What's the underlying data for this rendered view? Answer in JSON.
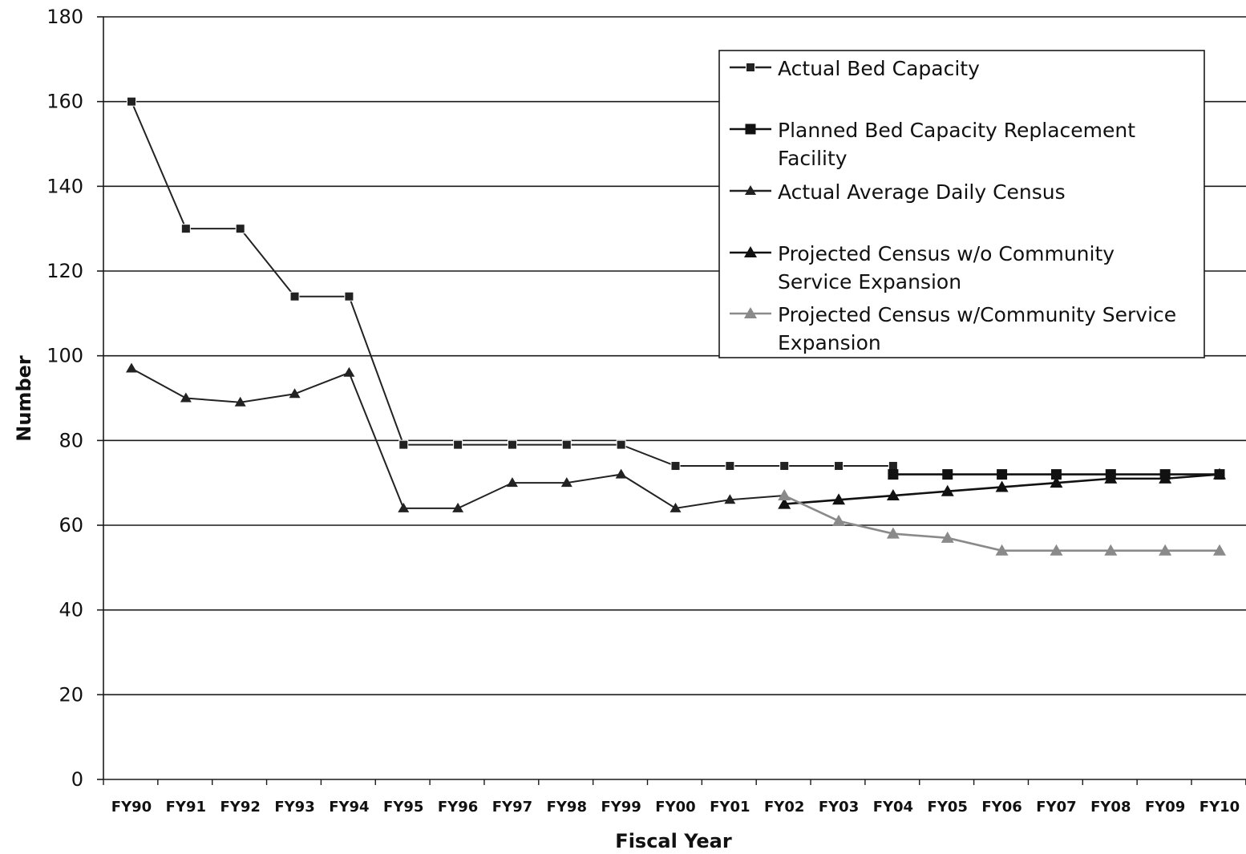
{
  "chart_data": {
    "type": "line",
    "title": "",
    "xlabel": "Fiscal Year",
    "ylabel": "Number",
    "ylim": [
      0,
      180
    ],
    "yticks": [
      0,
      20,
      40,
      60,
      80,
      100,
      120,
      140,
      160,
      180
    ],
    "grid": "horizontal",
    "legend_position": "top-right",
    "categories": [
      "FY90",
      "FY91",
      "FY92",
      "FY93",
      "FY94",
      "FY95",
      "FY96",
      "FY97",
      "FY98",
      "FY99",
      "FY00",
      "FY01",
      "FY02",
      "FY03",
      "FY04",
      "FY05",
      "FY06",
      "FY07",
      "FY08",
      "FY09",
      "FY10"
    ],
    "series": [
      {
        "name": "Actual Bed Capacity",
        "marker": "square-small",
        "color": "#222222",
        "values": [
          160,
          130,
          130,
          114,
          114,
          79,
          79,
          79,
          79,
          79,
          74,
          74,
          74,
          74,
          74,
          null,
          null,
          null,
          null,
          null,
          null
        ]
      },
      {
        "name": "Planned Bed Capacity Replacement Facility",
        "marker": "square",
        "color": "#111111",
        "values": [
          null,
          null,
          null,
          null,
          null,
          null,
          null,
          null,
          null,
          null,
          null,
          null,
          null,
          null,
          72,
          72,
          72,
          72,
          72,
          72,
          72
        ]
      },
      {
        "name": "Actual Average Daily Census",
        "marker": "triangle-small",
        "color": "#222222",
        "values": [
          97,
          90,
          89,
          91,
          96,
          64,
          64,
          70,
          70,
          72,
          64,
          66,
          67,
          null,
          null,
          null,
          null,
          null,
          null,
          null,
          null
        ]
      },
      {
        "name": "Projected Census w/o Community Service Expansion",
        "marker": "triangle",
        "color": "#111111",
        "values": [
          null,
          null,
          null,
          null,
          null,
          null,
          null,
          null,
          null,
          null,
          null,
          null,
          65,
          66,
          67,
          68,
          69,
          70,
          71,
          71,
          72
        ]
      },
      {
        "name": "Projected Census w/Community Service Expansion",
        "marker": "triangle",
        "color": "#8a8a8a",
        "values": [
          null,
          null,
          null,
          null,
          null,
          null,
          null,
          null,
          null,
          null,
          null,
          null,
          67,
          61,
          58,
          57,
          54,
          54,
          54,
          54,
          54
        ]
      }
    ],
    "legend": [
      {
        "lines": [
          "Actual Bed Capacity"
        ]
      },
      {
        "lines": [
          "Planned Bed Capacity Replacement",
          "Facility"
        ]
      },
      {
        "lines": [
          "Actual Average Daily Census"
        ]
      },
      {
        "lines": [
          "Projected Census w/o Community",
          "Service Expansion"
        ]
      },
      {
        "lines": [
          "Projected Census w/Community Service",
          "Expansion"
        ]
      }
    ]
  }
}
